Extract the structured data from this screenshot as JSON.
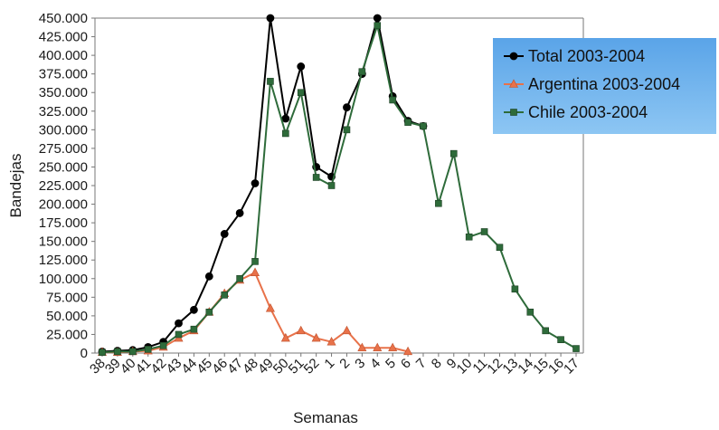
{
  "chart_data": {
    "type": "line",
    "xlabel": "Semanas",
    "ylabel": "Bandejas",
    "ylim": [
      0,
      450000
    ],
    "yticks": [
      0,
      25000,
      50000,
      75000,
      100000,
      125000,
      150000,
      175000,
      200000,
      225000,
      250000,
      275000,
      300000,
      325000,
      350000,
      375000,
      400000,
      425000,
      450000
    ],
    "ytick_labels": [
      "0",
      "25.000",
      "50.000",
      "75.000",
      "100.000",
      "125.000",
      "150.000",
      "175.000",
      "200.000",
      "225.000",
      "250.000",
      "275.000",
      "300.000",
      "325.000",
      "350.000",
      "375.000",
      "400.000",
      "425.000",
      "450.000"
    ],
    "categories": [
      "38",
      "39",
      "40",
      "41",
      "42",
      "43",
      "44",
      "45",
      "46",
      "47",
      "48",
      "49",
      "50",
      "51",
      "52",
      "1",
      "2",
      "3",
      "4",
      "5",
      "6",
      "7",
      "8",
      "9",
      "10",
      "11",
      "12",
      "13",
      "14",
      "15",
      "16",
      "17"
    ],
    "grid": false,
    "legend_position": "top-right",
    "series": [
      {
        "name": "Total 2003-2004",
        "color": "#000000",
        "marker": "circle",
        "values": [
          2000,
          3000,
          4000,
          8000,
          15000,
          40000,
          58000,
          103000,
          160000,
          188000,
          228000,
          450000,
          315000,
          385000,
          250000,
          237000,
          330000,
          375000,
          450000,
          345000,
          312000,
          305000,
          null,
          null,
          null,
          null,
          null,
          null,
          null,
          null,
          null,
          null
        ]
      },
      {
        "name": "Argentina 2003-2004",
        "color": "#e8724a",
        "marker": "triangle",
        "values": [
          1000,
          1000,
          2000,
          3000,
          8000,
          20000,
          30000,
          55000,
          80000,
          98000,
          108000,
          60000,
          20000,
          30000,
          20000,
          15000,
          30000,
          7000,
          7000,
          7000,
          2000,
          null,
          null,
          null,
          null,
          null,
          null,
          null,
          null,
          null,
          null,
          null
        ]
      },
      {
        "name": "Chile 2003-2004",
        "color": "#2e6b3a",
        "marker": "square",
        "values": [
          1000,
          2000,
          2000,
          5000,
          10000,
          25000,
          32000,
          55000,
          78000,
          100000,
          123000,
          365000,
          295000,
          350000,
          236000,
          225000,
          300000,
          378000,
          440000,
          340000,
          310000,
          305000,
          201000,
          268000,
          156000,
          163000,
          142000,
          86000,
          55000,
          30000,
          18000,
          6000
        ]
      }
    ]
  }
}
